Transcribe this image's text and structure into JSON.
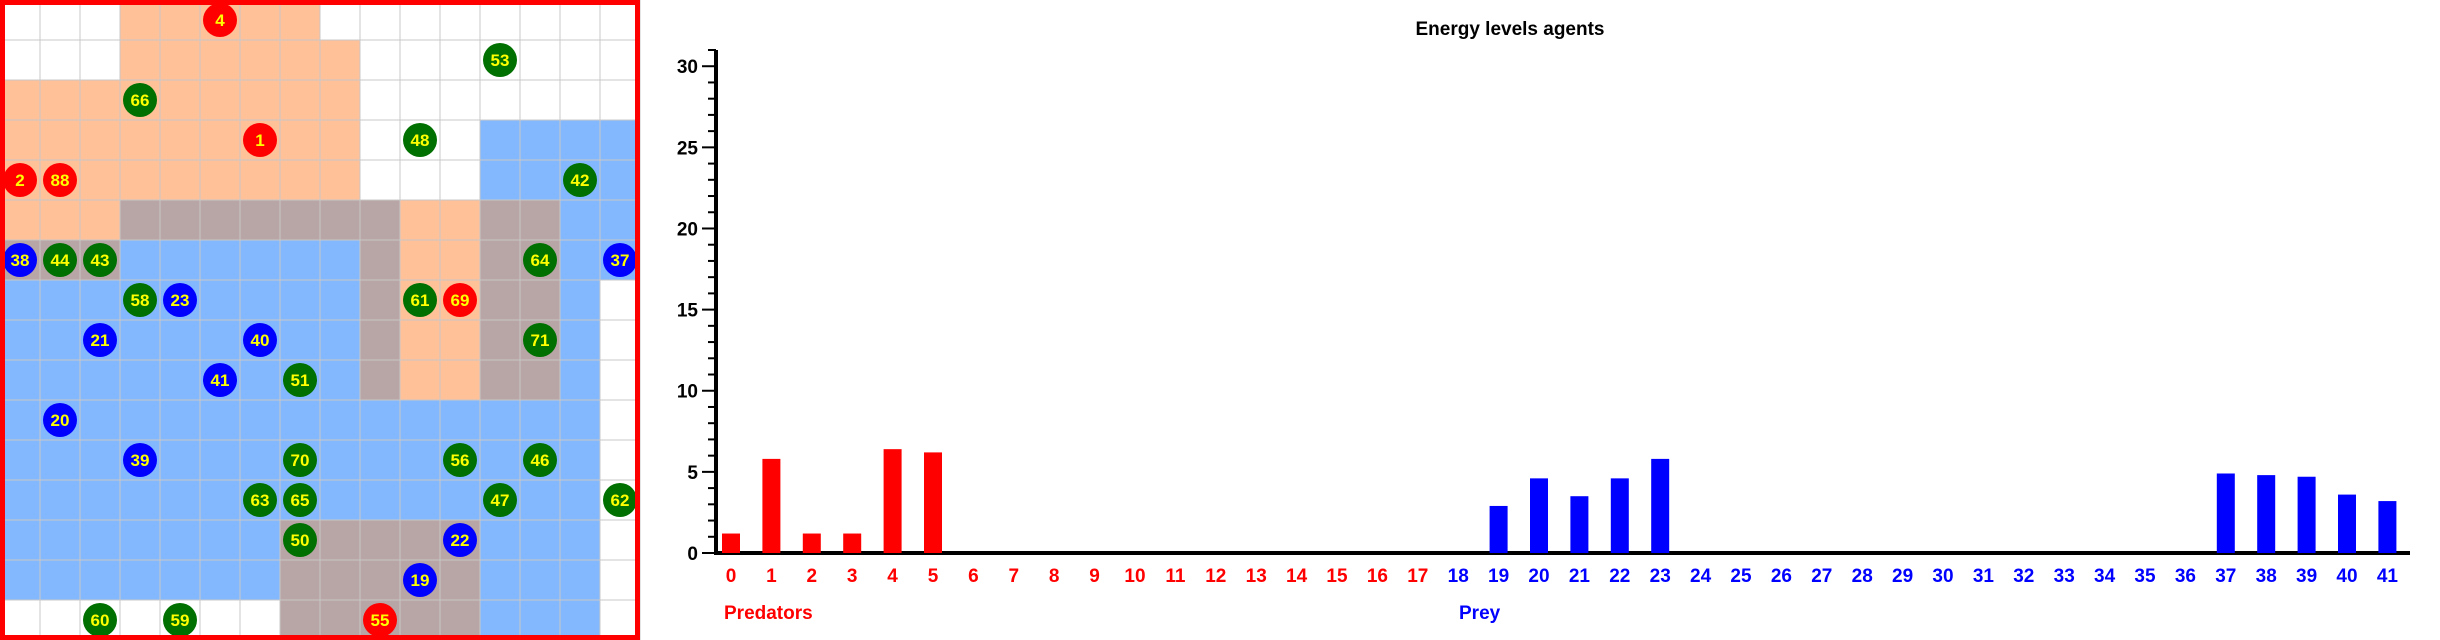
{
  "colors": {
    "predator": "#ff0000",
    "prey": "#0000ff",
    "plant": "#007000",
    "agent_text": "#ffff00",
    "predator_zone": "#ffa060",
    "prey_zone": "#5aa0ff",
    "overlap_zone": "#b4a0a0",
    "grid_frame": "#ff0000"
  },
  "grid": {
    "cols": 16,
    "rows": 16,
    "predator_zone_cells": [
      [
        3,
        0
      ],
      [
        4,
        0
      ],
      [
        5,
        0
      ],
      [
        6,
        0
      ],
      [
        7,
        0
      ],
      [
        3,
        1
      ],
      [
        4,
        1
      ],
      [
        5,
        1
      ],
      [
        6,
        1
      ],
      [
        7,
        1
      ],
      [
        8,
        1
      ],
      [
        0,
        2
      ],
      [
        1,
        2
      ],
      [
        2,
        2
      ],
      [
        3,
        2
      ],
      [
        4,
        2
      ],
      [
        5,
        2
      ],
      [
        6,
        2
      ],
      [
        7,
        2
      ],
      [
        8,
        2
      ],
      [
        0,
        3
      ],
      [
        1,
        3
      ],
      [
        2,
        3
      ],
      [
        3,
        3
      ],
      [
        4,
        3
      ],
      [
        5,
        3
      ],
      [
        6,
        3
      ],
      [
        7,
        3
      ],
      [
        8,
        3
      ],
      [
        0,
        4
      ],
      [
        1,
        4
      ],
      [
        2,
        4
      ],
      [
        3,
        4
      ],
      [
        4,
        4
      ],
      [
        5,
        4
      ],
      [
        6,
        4
      ],
      [
        7,
        4
      ],
      [
        8,
        4
      ],
      [
        0,
        5
      ],
      [
        1,
        5
      ],
      [
        2,
        5
      ],
      [
        3,
        5
      ],
      [
        4,
        5
      ],
      [
        5,
        5
      ],
      [
        6,
        5
      ],
      [
        7,
        5
      ],
      [
        8,
        5
      ],
      [
        9,
        5
      ],
      [
        10,
        5
      ],
      [
        11,
        5
      ],
      [
        12,
        5
      ],
      [
        13,
        5
      ],
      [
        0,
        6
      ],
      [
        1,
        6
      ],
      [
        2,
        6
      ],
      [
        9,
        6
      ],
      [
        10,
        6
      ],
      [
        11,
        6
      ],
      [
        12,
        6
      ],
      [
        13,
        6
      ],
      [
        9,
        7
      ],
      [
        10,
        7
      ],
      [
        11,
        7
      ],
      [
        12,
        7
      ],
      [
        13,
        7
      ],
      [
        9,
        8
      ],
      [
        10,
        8
      ],
      [
        11,
        8
      ],
      [
        12,
        8
      ],
      [
        13,
        8
      ],
      [
        9,
        9
      ],
      [
        10,
        9
      ],
      [
        11,
        9
      ],
      [
        12,
        9
      ],
      [
        13,
        9
      ],
      [
        7,
        13
      ],
      [
        8,
        13
      ],
      [
        9,
        13
      ],
      [
        10,
        13
      ],
      [
        11,
        13
      ],
      [
        7,
        14
      ],
      [
        8,
        14
      ],
      [
        9,
        14
      ],
      [
        10,
        14
      ],
      [
        11,
        14
      ],
      [
        7,
        15
      ],
      [
        8,
        15
      ],
      [
        9,
        15
      ],
      [
        10,
        15
      ],
      [
        11,
        15
      ]
    ],
    "prey_zone_cells": [
      [
        12,
        3
      ],
      [
        13,
        3
      ],
      [
        14,
        3
      ],
      [
        15,
        3
      ],
      [
        12,
        4
      ],
      [
        13,
        4
      ],
      [
        14,
        4
      ],
      [
        15,
        4
      ],
      [
        3,
        5
      ],
      [
        4,
        5
      ],
      [
        5,
        5
      ],
      [
        6,
        5
      ],
      [
        7,
        5
      ],
      [
        8,
        5
      ],
      [
        9,
        5
      ],
      [
        12,
        5
      ],
      [
        13,
        5
      ],
      [
        14,
        5
      ],
      [
        15,
        5
      ],
      [
        0,
        6
      ],
      [
        1,
        6
      ],
      [
        2,
        6
      ],
      [
        3,
        6
      ],
      [
        4,
        6
      ],
      [
        5,
        6
      ],
      [
        6,
        6
      ],
      [
        7,
        6
      ],
      [
        8,
        6
      ],
      [
        9,
        6
      ],
      [
        12,
        6
      ],
      [
        13,
        6
      ],
      [
        14,
        6
      ],
      [
        15,
        6
      ],
      [
        0,
        7
      ],
      [
        1,
        7
      ],
      [
        2,
        7
      ],
      [
        3,
        7
      ],
      [
        4,
        7
      ],
      [
        5,
        7
      ],
      [
        6,
        7
      ],
      [
        7,
        7
      ],
      [
        8,
        7
      ],
      [
        9,
        7
      ],
      [
        12,
        7
      ],
      [
        13,
        7
      ],
      [
        14,
        7
      ],
      [
        0,
        8
      ],
      [
        1,
        8
      ],
      [
        2,
        8
      ],
      [
        3,
        8
      ],
      [
        4,
        8
      ],
      [
        5,
        8
      ],
      [
        6,
        8
      ],
      [
        7,
        8
      ],
      [
        8,
        8
      ],
      [
        9,
        8
      ],
      [
        12,
        8
      ],
      [
        13,
        8
      ],
      [
        14,
        8
      ],
      [
        0,
        9
      ],
      [
        1,
        9
      ],
      [
        2,
        9
      ],
      [
        3,
        9
      ],
      [
        4,
        9
      ],
      [
        5,
        9
      ],
      [
        6,
        9
      ],
      [
        7,
        9
      ],
      [
        8,
        9
      ],
      [
        9,
        9
      ],
      [
        12,
        9
      ],
      [
        13,
        9
      ],
      [
        14,
        9
      ],
      [
        0,
        10
      ],
      [
        1,
        10
      ],
      [
        2,
        10
      ],
      [
        3,
        10
      ],
      [
        4,
        10
      ],
      [
        5,
        10
      ],
      [
        6,
        10
      ],
      [
        7,
        10
      ],
      [
        8,
        10
      ],
      [
        9,
        10
      ],
      [
        10,
        10
      ],
      [
        11,
        10
      ],
      [
        12,
        10
      ],
      [
        13,
        10
      ],
      [
        14,
        10
      ],
      [
        0,
        11
      ],
      [
        1,
        11
      ],
      [
        2,
        11
      ],
      [
        3,
        11
      ],
      [
        4,
        11
      ],
      [
        5,
        11
      ],
      [
        6,
        11
      ],
      [
        7,
        11
      ],
      [
        8,
        11
      ],
      [
        9,
        11
      ],
      [
        10,
        11
      ],
      [
        11,
        11
      ],
      [
        12,
        11
      ],
      [
        13,
        11
      ],
      [
        14,
        11
      ],
      [
        0,
        12
      ],
      [
        1,
        12
      ],
      [
        2,
        12
      ],
      [
        3,
        12
      ],
      [
        4,
        12
      ],
      [
        5,
        12
      ],
      [
        6,
        12
      ],
      [
        7,
        12
      ],
      [
        8,
        12
      ],
      [
        9,
        12
      ],
      [
        10,
        12
      ],
      [
        11,
        12
      ],
      [
        12,
        12
      ],
      [
        13,
        12
      ],
      [
        14,
        12
      ],
      [
        0,
        13
      ],
      [
        1,
        13
      ],
      [
        2,
        13
      ],
      [
        3,
        13
      ],
      [
        4,
        13
      ],
      [
        5,
        13
      ],
      [
        6,
        13
      ],
      [
        7,
        13
      ],
      [
        8,
        13
      ],
      [
        9,
        13
      ],
      [
        10,
        13
      ],
      [
        11,
        13
      ],
      [
        12,
        13
      ],
      [
        13,
        13
      ],
      [
        14,
        13
      ],
      [
        0,
        14
      ],
      [
        1,
        14
      ],
      [
        2,
        14
      ],
      [
        3,
        14
      ],
      [
        4,
        14
      ],
      [
        5,
        14
      ],
      [
        6,
        14
      ],
      [
        7,
        14
      ],
      [
        8,
        14
      ],
      [
        9,
        14
      ],
      [
        10,
        14
      ],
      [
        11,
        14
      ],
      [
        12,
        14
      ],
      [
        13,
        14
      ],
      [
        14,
        14
      ],
      [
        7,
        15
      ],
      [
        8,
        15
      ],
      [
        9,
        15
      ],
      [
        10,
        15
      ],
      [
        11,
        15
      ],
      [
        12,
        15
      ],
      [
        13,
        15
      ],
      [
        14,
        15
      ]
    ],
    "agents": [
      {
        "id": "4",
        "type": "predator",
        "col": 5,
        "row": 0
      },
      {
        "id": "53",
        "type": "plant",
        "col": 12,
        "row": 1
      },
      {
        "id": "66",
        "type": "plant",
        "col": 3,
        "row": 2
      },
      {
        "id": "1",
        "type": "predator",
        "col": 6,
        "row": 3
      },
      {
        "id": "48",
        "type": "plant",
        "col": 10,
        "row": 3
      },
      {
        "id": "2",
        "type": "predator",
        "col": 0,
        "row": 4
      },
      {
        "id": "88",
        "type": "predator",
        "col": 1,
        "row": 4
      },
      {
        "id": "42",
        "type": "plant",
        "col": 14,
        "row": 4
      },
      {
        "id": "38",
        "type": "prey",
        "col": 0,
        "row": 6
      },
      {
        "id": "44",
        "type": "plant",
        "col": 1,
        "row": 6
      },
      {
        "id": "43",
        "type": "plant",
        "col": 2,
        "row": 6
      },
      {
        "id": "64",
        "type": "plant",
        "col": 13,
        "row": 6
      },
      {
        "id": "37",
        "type": "prey",
        "col": 15,
        "row": 6
      },
      {
        "id": "58",
        "type": "plant",
        "col": 3,
        "row": 7
      },
      {
        "id": "23",
        "type": "prey",
        "col": 4,
        "row": 7
      },
      {
        "id": "61",
        "type": "plant",
        "col": 10,
        "row": 7
      },
      {
        "id": "69",
        "type": "predator",
        "col": 11,
        "row": 7
      },
      {
        "id": "21",
        "type": "prey",
        "col": 2,
        "row": 8
      },
      {
        "id": "40",
        "type": "prey",
        "col": 6,
        "row": 8
      },
      {
        "id": "71",
        "type": "plant",
        "col": 13,
        "row": 8
      },
      {
        "id": "41",
        "type": "prey",
        "col": 5,
        "row": 9
      },
      {
        "id": "51",
        "type": "plant",
        "col": 7,
        "row": 9
      },
      {
        "id": "20",
        "type": "prey",
        "col": 1,
        "row": 10
      },
      {
        "id": "39",
        "type": "prey",
        "col": 3,
        "row": 11
      },
      {
        "id": "70",
        "type": "plant",
        "col": 7,
        "row": 11
      },
      {
        "id": "56",
        "type": "plant",
        "col": 11,
        "row": 11
      },
      {
        "id": "46",
        "type": "plant",
        "col": 13,
        "row": 11
      },
      {
        "id": "63",
        "type": "plant",
        "col": 6,
        "row": 12
      },
      {
        "id": "65",
        "type": "plant",
        "col": 7,
        "row": 12
      },
      {
        "id": "47",
        "type": "plant",
        "col": 12,
        "row": 12
      },
      {
        "id": "62",
        "type": "plant",
        "col": 15,
        "row": 12
      },
      {
        "id": "50",
        "type": "plant",
        "col": 7,
        "row": 13
      },
      {
        "id": "22",
        "type": "prey",
        "col": 11,
        "row": 13
      },
      {
        "id": "19",
        "type": "prey",
        "col": 10,
        "row": 14
      },
      {
        "id": "60",
        "type": "plant",
        "col": 2,
        "row": 15
      },
      {
        "id": "59",
        "type": "plant",
        "col": 4,
        "row": 15
      },
      {
        "id": "55",
        "type": "predator",
        "col": 9,
        "row": 15
      }
    ]
  },
  "chart_data": {
    "type": "bar",
    "title": "Energy levels agents",
    "xlabel": "",
    "ylabel": "",
    "ylim": [
      0,
      31
    ],
    "yticks": [
      "0",
      "5",
      "10",
      "15",
      "20",
      "25",
      "30"
    ],
    "categories": [
      "0",
      "1",
      "2",
      "3",
      "4",
      "5",
      "6",
      "7",
      "8",
      "9",
      "10",
      "11",
      "12",
      "13",
      "14",
      "15",
      "16",
      "17",
      "18",
      "19",
      "20",
      "21",
      "22",
      "23",
      "24",
      "25",
      "26",
      "27",
      "28",
      "29",
      "30",
      "31",
      "32",
      "33",
      "34",
      "35",
      "36",
      "37",
      "38",
      "39",
      "40",
      "41"
    ],
    "category_groups": [
      "predator",
      "predator",
      "predator",
      "predator",
      "predator",
      "predator",
      "predator",
      "predator",
      "predator",
      "predator",
      "predator",
      "predator",
      "predator",
      "predator",
      "predator",
      "predator",
      "predator",
      "predator",
      "prey",
      "prey",
      "prey",
      "prey",
      "prey",
      "prey",
      "prey",
      "prey",
      "prey",
      "prey",
      "prey",
      "prey",
      "prey",
      "prey",
      "prey",
      "prey",
      "prey",
      "prey",
      "prey",
      "prey",
      "prey",
      "prey",
      "prey",
      "prey"
    ],
    "values": [
      1.2,
      5.8,
      1.2,
      1.2,
      6.4,
      6.2,
      0,
      0,
      0,
      0,
      0,
      0,
      0,
      0,
      0,
      0,
      0,
      0,
      0,
      2.9,
      4.6,
      3.5,
      4.6,
      5.8,
      0,
      0,
      0,
      0,
      0,
      0,
      0,
      0,
      0,
      0,
      0,
      0,
      0,
      4.9,
      4.8,
      4.7,
      3.6,
      3.2
    ],
    "group_labels": {
      "predator": "Predators",
      "prey": "Prey"
    },
    "grid": false
  }
}
